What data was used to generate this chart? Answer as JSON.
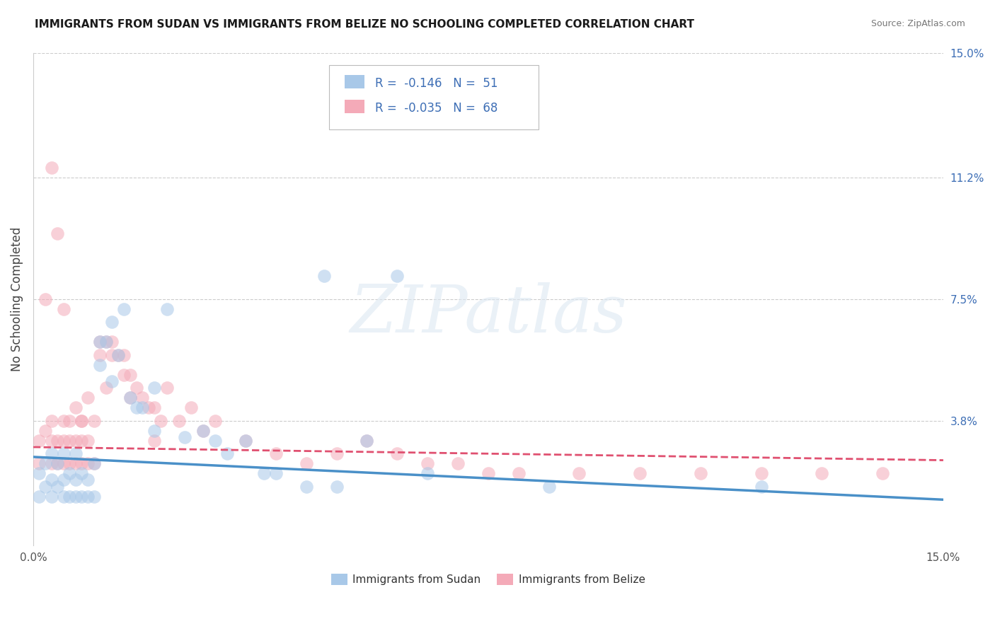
{
  "title": "IMMIGRANTS FROM SUDAN VS IMMIGRANTS FROM BELIZE NO SCHOOLING COMPLETED CORRELATION CHART",
  "source": "Source: ZipAtlas.com",
  "ylabel": "No Schooling Completed",
  "xlim": [
    0.0,
    0.15
  ],
  "ylim": [
    0.0,
    0.15
  ],
  "xtick_vals": [
    0.0,
    0.15
  ],
  "xtick_labels": [
    "0.0%",
    "15.0%"
  ],
  "ytick_right_vals": [
    0.038,
    0.075,
    0.112,
    0.15
  ],
  "ytick_right_labels": [
    "3.8%",
    "7.5%",
    "11.2%",
    "15.0%"
  ],
  "hlines": [
    0.038,
    0.075,
    0.112,
    0.15
  ],
  "sudan_color": "#a8c8e8",
  "belize_color": "#f4aab8",
  "sudan_line_color": "#4a90c8",
  "belize_line_color": "#e05070",
  "legend_color": "#3d6eb5",
  "sudan_R": -0.146,
  "sudan_N": 51,
  "belize_R": -0.035,
  "belize_N": 68,
  "sudan_trend": [
    0.027,
    0.014
  ],
  "belize_trend": [
    0.03,
    0.026
  ],
  "sudan_x": [
    0.001,
    0.001,
    0.002,
    0.002,
    0.003,
    0.003,
    0.003,
    0.004,
    0.004,
    0.005,
    0.005,
    0.005,
    0.006,
    0.006,
    0.007,
    0.007,
    0.007,
    0.008,
    0.008,
    0.009,
    0.009,
    0.01,
    0.01,
    0.011,
    0.011,
    0.012,
    0.013,
    0.013,
    0.014,
    0.015,
    0.016,
    0.017,
    0.018,
    0.02,
    0.02,
    0.022,
    0.025,
    0.028,
    0.03,
    0.032,
    0.035,
    0.038,
    0.04,
    0.045,
    0.048,
    0.05,
    0.055,
    0.06,
    0.065,
    0.085,
    0.12
  ],
  "sudan_y": [
    0.015,
    0.022,
    0.018,
    0.025,
    0.015,
    0.02,
    0.028,
    0.018,
    0.025,
    0.015,
    0.02,
    0.028,
    0.015,
    0.022,
    0.015,
    0.02,
    0.028,
    0.015,
    0.022,
    0.015,
    0.02,
    0.015,
    0.025,
    0.055,
    0.062,
    0.062,
    0.068,
    0.05,
    0.058,
    0.072,
    0.045,
    0.042,
    0.042,
    0.048,
    0.035,
    0.072,
    0.033,
    0.035,
    0.032,
    0.028,
    0.032,
    0.022,
    0.022,
    0.018,
    0.082,
    0.018,
    0.032,
    0.082,
    0.022,
    0.018,
    0.018
  ],
  "belize_x": [
    0.001,
    0.001,
    0.002,
    0.002,
    0.003,
    0.003,
    0.003,
    0.004,
    0.004,
    0.005,
    0.005,
    0.005,
    0.006,
    0.006,
    0.006,
    0.007,
    0.007,
    0.008,
    0.008,
    0.008,
    0.009,
    0.009,
    0.01,
    0.01,
    0.011,
    0.011,
    0.012,
    0.013,
    0.013,
    0.014,
    0.015,
    0.016,
    0.016,
    0.017,
    0.018,
    0.019,
    0.02,
    0.021,
    0.022,
    0.024,
    0.026,
    0.028,
    0.03,
    0.035,
    0.04,
    0.045,
    0.05,
    0.055,
    0.06,
    0.065,
    0.07,
    0.075,
    0.08,
    0.09,
    0.1,
    0.11,
    0.12,
    0.13,
    0.14,
    0.003,
    0.004,
    0.005,
    0.007,
    0.008,
    0.009,
    0.012,
    0.015,
    0.02
  ],
  "belize_y": [
    0.025,
    0.032,
    0.075,
    0.035,
    0.025,
    0.032,
    0.038,
    0.025,
    0.032,
    0.025,
    0.032,
    0.038,
    0.025,
    0.032,
    0.038,
    0.025,
    0.032,
    0.025,
    0.032,
    0.038,
    0.025,
    0.032,
    0.025,
    0.038,
    0.058,
    0.062,
    0.062,
    0.058,
    0.062,
    0.058,
    0.058,
    0.052,
    0.045,
    0.048,
    0.045,
    0.042,
    0.042,
    0.038,
    0.048,
    0.038,
    0.042,
    0.035,
    0.038,
    0.032,
    0.028,
    0.025,
    0.028,
    0.032,
    0.028,
    0.025,
    0.025,
    0.022,
    0.022,
    0.022,
    0.022,
    0.022,
    0.022,
    0.022,
    0.022,
    0.115,
    0.095,
    0.072,
    0.042,
    0.038,
    0.045,
    0.048,
    0.052,
    0.032
  ],
  "watermark_text": "ZIPatlas",
  "background_color": "#ffffff",
  "title_fontsize": 11,
  "source_fontsize": 9,
  "axis_color": "#cccccc",
  "tick_label_color": "#555555",
  "right_tick_color": "#3d6eb5"
}
